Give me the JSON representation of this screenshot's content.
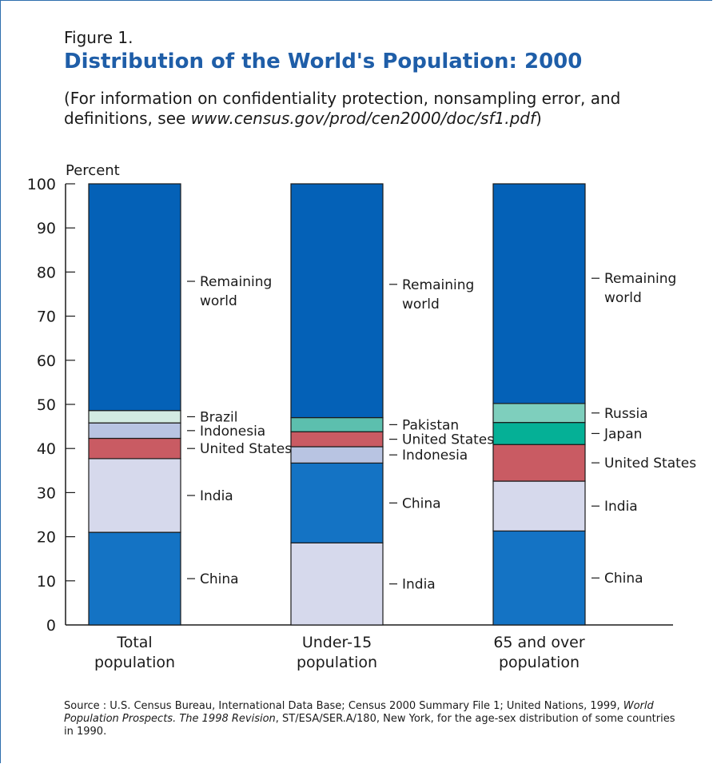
{
  "header": {
    "figure_label": "Figure 1.",
    "title": "Distribution of the World's Population:  2000",
    "note_prefix": "(For information on confidentiality protection, nonsampling error, and definitions, see ",
    "note_url": "www.census.gov/prod/cen2000/doc/sf1.pdf",
    "note_suffix": ")"
  },
  "source": {
    "part1": "Source : U.S. Census Bureau, International Data Base; Census 2000 Summary File 1; United Nations, 1999, ",
    "italic": "World Population Prospects. The 1998 Revision",
    "part2": ", ST/ESA/SER.A/180, New York, for the age-sex distribution of some countries in 1990."
  },
  "colors": {
    "china": "#1473c4",
    "india": "#d6d9ec",
    "united_states": "#c95b63",
    "indonesia": "#b8c4e2",
    "brazil": "#d2ebe2",
    "pakistan": "#5cbfae",
    "japan": "#05b096",
    "russia": "#7ecfbd",
    "remaining": "#0461b7"
  },
  "chart_data": {
    "type": "bar",
    "stacked": true,
    "ylabel": "Percent",
    "ylim": [
      0,
      100
    ],
    "yticks": [
      0,
      10,
      20,
      30,
      40,
      50,
      60,
      70,
      80,
      90,
      100
    ],
    "grid": false,
    "bars": [
      {
        "label_lines": [
          "Total",
          "population"
        ],
        "segments": [
          {
            "name_lines": [
              "China"
            ],
            "value": 21.0,
            "color_key": "china"
          },
          {
            "name_lines": [
              "India"
            ],
            "value": 16.7,
            "color_key": "india"
          },
          {
            "name_lines": [
              "United States"
            ],
            "value": 4.6,
            "color_key": "united_states"
          },
          {
            "name_lines": [
              "Indonesia"
            ],
            "value": 3.5,
            "color_key": "indonesia"
          },
          {
            "name_lines": [
              "Brazil"
            ],
            "value": 2.8,
            "color_key": "brazil"
          },
          {
            "name_lines": [
              "Remaining",
              "world"
            ],
            "value": 51.4,
            "color_key": "remaining"
          }
        ]
      },
      {
        "label_lines": [
          "Under-15",
          "population"
        ],
        "segments": [
          {
            "name_lines": [
              "India"
            ],
            "value": 18.6,
            "color_key": "india"
          },
          {
            "name_lines": [
              "China"
            ],
            "value": 18.1,
            "color_key": "china"
          },
          {
            "name_lines": [
              "Indonesia"
            ],
            "value": 3.7,
            "color_key": "indonesia"
          },
          {
            "name_lines": [
              "United States"
            ],
            "value": 3.4,
            "color_key": "united_states"
          },
          {
            "name_lines": [
              "Pakistan"
            ],
            "value": 3.2,
            "color_key": "pakistan"
          },
          {
            "name_lines": [
              "Remaining",
              "world"
            ],
            "value": 53.0,
            "color_key": "remaining"
          }
        ]
      },
      {
        "label_lines": [
          "65 and over",
          "population"
        ],
        "segments": [
          {
            "name_lines": [
              "China"
            ],
            "value": 21.3,
            "color_key": "china"
          },
          {
            "name_lines": [
              "India"
            ],
            "value": 11.3,
            "color_key": "india"
          },
          {
            "name_lines": [
              "United States"
            ],
            "value": 8.3,
            "color_key": "united_states"
          },
          {
            "name_lines": [
              "Japan"
            ],
            "value": 5.0,
            "color_key": "japan"
          },
          {
            "name_lines": [
              "Russia"
            ],
            "value": 4.3,
            "color_key": "russia"
          },
          {
            "name_lines": [
              "Remaining",
              "world"
            ],
            "value": 49.8,
            "color_key": "remaining"
          }
        ]
      }
    ]
  }
}
